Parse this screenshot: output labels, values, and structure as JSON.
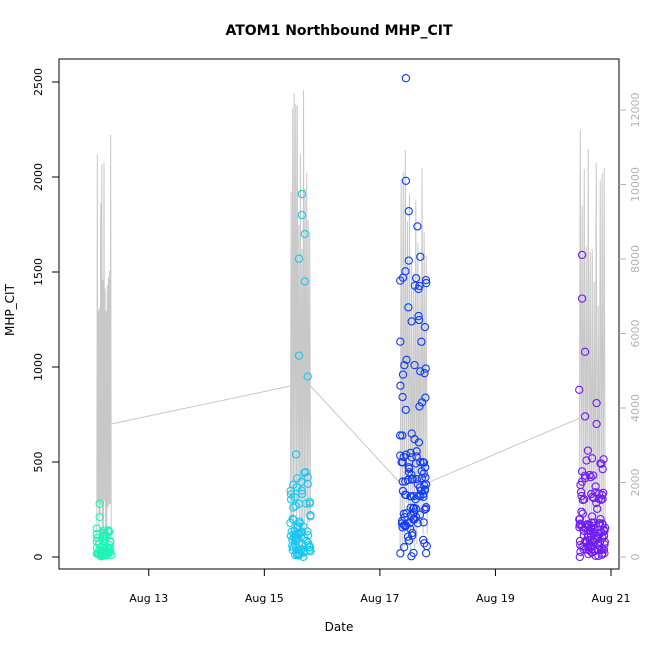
{
  "chart_data": {
    "type": "scatter",
    "title": "ATOM1 Northbound MHP_CIT",
    "xlabel": "Date",
    "ylabel": "MHP_CIT",
    "xlim": [
      "Aug 12",
      "Aug 21"
    ],
    "ylim": [
      0,
      2500
    ],
    "y2lim": [
      0,
      12000
    ],
    "x_ticks": [
      "Aug 13",
      "Aug 15",
      "Aug 17",
      "Aug 19",
      "Aug 21"
    ],
    "y_ticks": [
      "0",
      "500",
      "1000",
      "1500",
      "2000",
      "2500"
    ],
    "y2_ticks": [
      "0",
      "2000",
      "4000",
      "6000",
      "8000",
      "10000",
      "12000"
    ],
    "grid": false,
    "series": [
      {
        "colors": [
          "#1df5b8",
          "#1ac6f0",
          "#0f3bf5",
          "#6f1cf0"
        ],
        "points": [
          [
            "Aug 12.1",
            80
          ],
          [
            "Aug 12.1",
            150
          ],
          [
            "Aug 12.1",
            120
          ],
          [
            "Aug 12.15",
            210
          ],
          [
            "Aug 12.15",
            280
          ],
          [
            "Aug 12.2",
            110
          ],
          [
            "Aug 12.2",
            60
          ],
          [
            "Aug 12.25",
            40
          ],
          [
            "Aug 12.25",
            95
          ],
          [
            "Aug 12.3",
            140
          ],
          [
            "Aug 12.3",
            25
          ],
          [
            "Aug 12.35",
            10
          ],
          [
            "Aug 15.45",
            180
          ],
          [
            "Aug 15.5",
            260
          ],
          [
            "Aug 15.5",
            380
          ],
          [
            "Aug 15.55",
            540
          ],
          [
            "Aug 15.55",
            90
          ],
          [
            "Aug 15.6",
            1060
          ],
          [
            "Aug 15.6",
            1570
          ],
          [
            "Aug 15.65",
            1800
          ],
          [
            "Aug 15.65",
            1910
          ],
          [
            "Aug 15.7",
            1700
          ],
          [
            "Aug 15.7",
            1450
          ],
          [
            "Aug 15.75",
            950
          ],
          [
            "Aug 15.75",
            420
          ],
          [
            "Aug 15.8",
            220
          ],
          [
            "Aug 15.8",
            30
          ],
          [
            "Aug 17.35",
            640
          ],
          [
            "Aug 17.4",
            960
          ],
          [
            "Aug 17.4",
            1470
          ],
          [
            "Aug 17.45",
            1980
          ],
          [
            "Aug 17.45",
            2520
          ],
          [
            "Aug 17.5",
            1820
          ],
          [
            "Aug 17.5",
            1560
          ],
          [
            "Aug 17.55",
            1240
          ],
          [
            "Aug 17.6",
            1010
          ],
          [
            "Aug 17.6",
            620
          ],
          [
            "Aug 17.65",
            1740
          ],
          [
            "Aug 17.7",
            1580
          ],
          [
            "Aug 17.7",
            320
          ],
          [
            "Aug 17.75",
            90
          ],
          [
            "Aug 17.8",
            20
          ],
          [
            "Aug 20.45",
            880
          ],
          [
            "Aug 20.5",
            1590
          ],
          [
            "Aug 20.5",
            1360
          ],
          [
            "Aug 20.55",
            1080
          ],
          [
            "Aug 20.55",
            740
          ],
          [
            "Aug 20.6",
            560
          ],
          [
            "Aug 20.65",
            420
          ],
          [
            "Aug 20.7",
            310
          ],
          [
            "Aug 20.75",
            810
          ],
          [
            "Aug 20.75",
            700
          ],
          [
            "Aug 20.8",
            120
          ],
          [
            "Aug 20.85",
            20
          ]
        ]
      }
    ]
  }
}
